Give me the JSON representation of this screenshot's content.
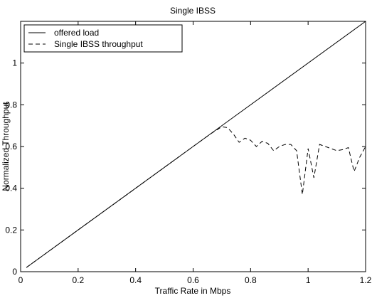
{
  "chart_data": {
    "type": "line",
    "title": "Single IBSS",
    "xlabel": "Traffic Rate in Mbps",
    "ylabel": "Normalized Throughput",
    "xlim": [
      0,
      1.2
    ],
    "ylim": [
      0,
      1.2
    ],
    "xticks": [
      0,
      0.2,
      0.4,
      0.6,
      0.8,
      1,
      1.2
    ],
    "yticks": [
      0,
      0.2,
      0.4,
      0.6,
      0.8,
      1
    ],
    "xtick_labels": [
      "0",
      "0.2",
      "0.4",
      "0.6",
      "0.8",
      "1",
      "1.2"
    ],
    "ytick_labels": [
      "0",
      "0.2",
      "0.4",
      "0.6",
      "0.8",
      "1"
    ],
    "grid": false,
    "legend_position": "top-left",
    "series": [
      {
        "name": "offered load",
        "style": "solid",
        "color": "#000000",
        "x": [
          0.02,
          1.2
        ],
        "y": [
          0.02,
          1.2
        ]
      },
      {
        "name": "Single IBSS throughput",
        "style": "dashed",
        "color": "#000000",
        "x": [
          0.02,
          0.1,
          0.2,
          0.3,
          0.4,
          0.5,
          0.6,
          0.66,
          0.7,
          0.72,
          0.74,
          0.76,
          0.78,
          0.8,
          0.82,
          0.84,
          0.86,
          0.88,
          0.9,
          0.92,
          0.94,
          0.96,
          0.98,
          1.0,
          1.02,
          1.04,
          1.06,
          1.08,
          1.1,
          1.12,
          1.14,
          1.16,
          1.18,
          1.2
        ],
        "y": [
          0.02,
          0.1,
          0.2,
          0.3,
          0.4,
          0.5,
          0.6,
          0.66,
          0.695,
          0.69,
          0.66,
          0.62,
          0.64,
          0.63,
          0.6,
          0.625,
          0.615,
          0.58,
          0.6,
          0.61,
          0.61,
          0.58,
          0.37,
          0.59,
          0.45,
          0.61,
          0.6,
          0.59,
          0.58,
          0.585,
          0.595,
          0.48,
          0.55,
          0.6
        ]
      }
    ]
  }
}
